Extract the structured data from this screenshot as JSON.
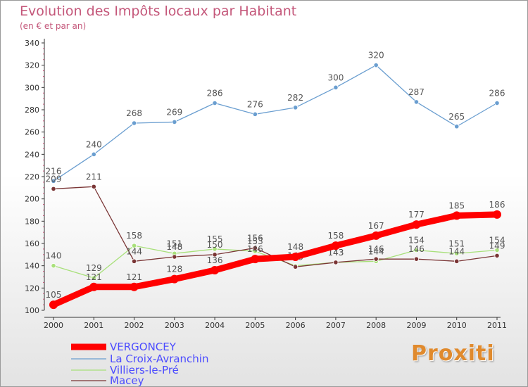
{
  "header": {
    "title": "Evolution des Impôts locaux par Habitant",
    "subtitle": "(en € et par an)"
  },
  "logo": {
    "text": "Proxiti"
  },
  "chart_data": {
    "type": "line",
    "title": "Evolution des Impôts locaux par Habitant",
    "subtitle": "(en € et par an)",
    "xlabel": "",
    "ylabel": "",
    "ylim": [
      100,
      340
    ],
    "yticks": [
      100,
      120,
      140,
      160,
      180,
      200,
      220,
      240,
      260,
      280,
      300,
      320,
      340
    ],
    "grid": false,
    "legend_position": "bottom-left",
    "categories": [
      "2000",
      "2001",
      "2002",
      "2003",
      "2004",
      "2005",
      "2006",
      "2007",
      "2008",
      "2009",
      "2010",
      "2011"
    ],
    "series": [
      {
        "name": "VERGONCEY",
        "color": "#ff0000",
        "emphasis": true,
        "values": [
          105,
          121,
          121,
          128,
          136,
          146,
          148,
          158,
          167,
          177,
          185,
          186
        ]
      },
      {
        "name": "La Croix-Avranchin",
        "color": "#6a9ed0",
        "values": [
          216,
          240,
          268,
          269,
          286,
          276,
          282,
          300,
          320,
          287,
          265,
          286
        ]
      },
      {
        "name": "Villiers-le-Pré",
        "color": "#a8e07a",
        "values": [
          140,
          129,
          158,
          151,
          155,
          153,
          140,
          143,
          144,
          154,
          151,
          154
        ]
      },
      {
        "name": "Macey",
        "color": "#7a3535",
        "values": [
          209,
          211,
          144,
          148,
          150,
          156,
          139,
          143,
          146,
          146,
          144,
          149
        ]
      }
    ]
  }
}
